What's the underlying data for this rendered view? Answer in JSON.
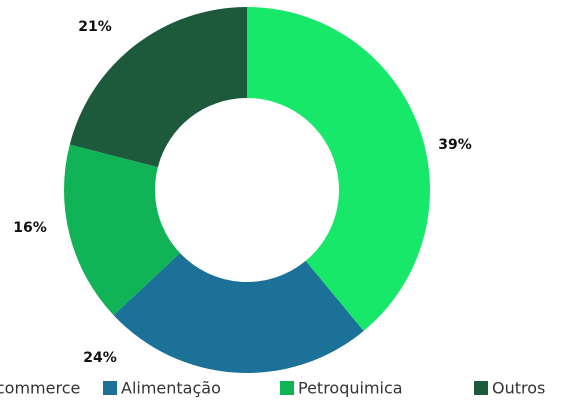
{
  "chart_data": {
    "type": "donut",
    "categories": [
      "E-commerce",
      "Alimentação",
      "Petroquimica",
      "Outros"
    ],
    "values": [
      39,
      24,
      16,
      21
    ],
    "value_labels": [
      "39%",
      "24%",
      "16%",
      "21%"
    ],
    "colors": [
      "#17e86a",
      "#1b7198",
      "#10b355",
      "#1d5a3c"
    ],
    "legend": "bottom"
  }
}
